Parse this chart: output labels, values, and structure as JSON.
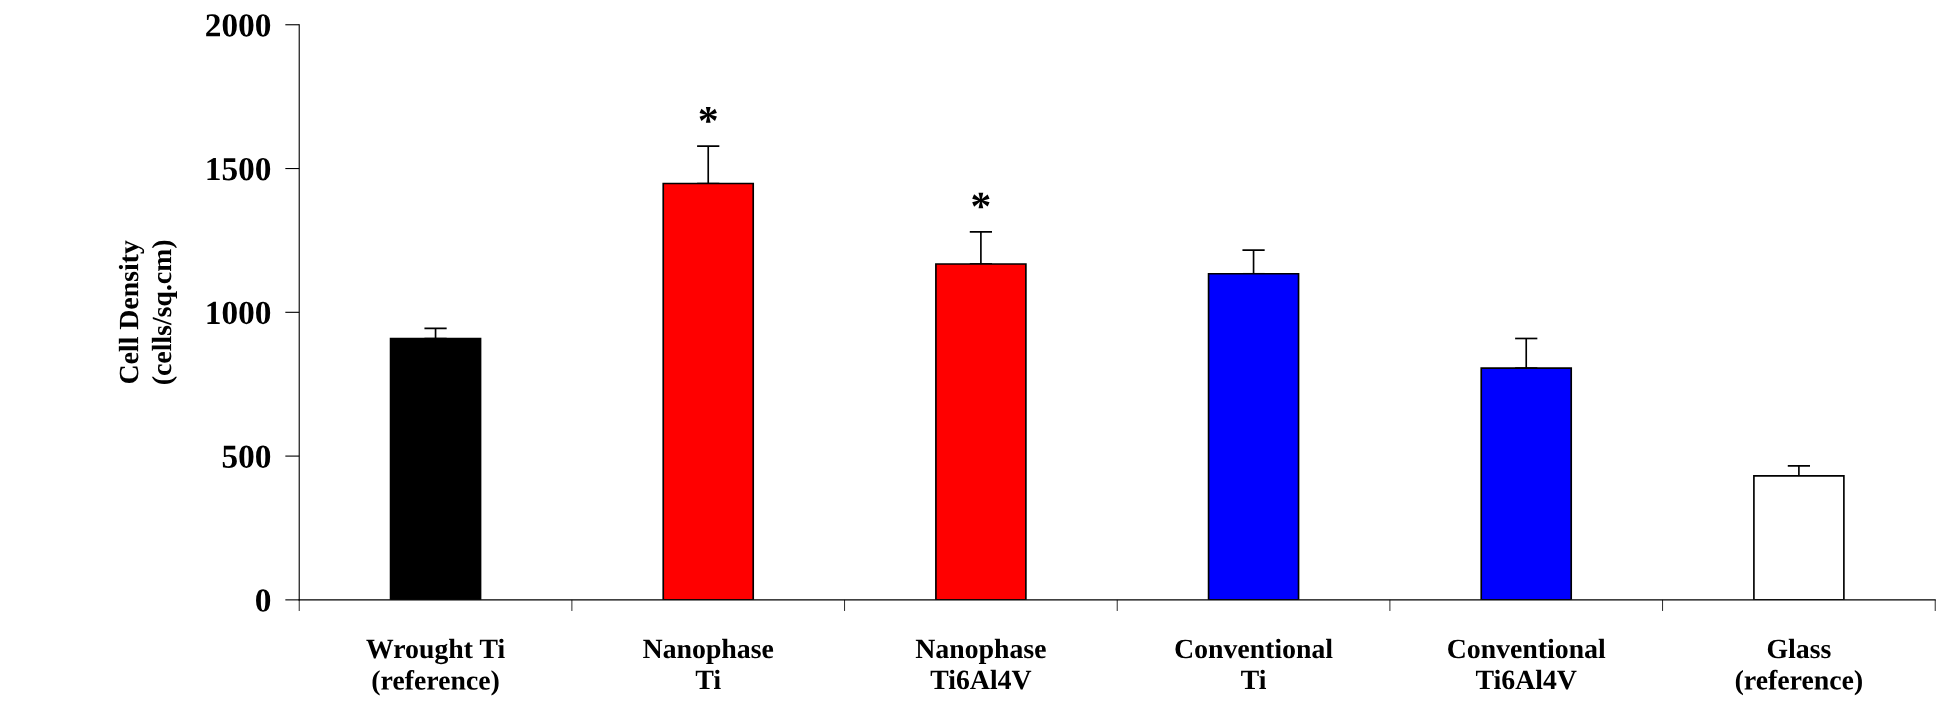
{
  "chart_data": {
    "type": "bar",
    "ylabel": "Cell Density\n(cells/sq.cm)",
    "categories": [
      "Wrought Ti\n(reference)",
      "Nanophase\nTi",
      "Nanophase\nTi6Al4V",
      "Conventional\nTi",
      "Conventional\nTi6Al4V",
      "Glass\n(reference)"
    ],
    "values": [
      909,
      1448,
      1168,
      1134,
      806,
      431
    ],
    "colors": [
      "#000000",
      "#ff0000",
      "#ff0000",
      "#0000ff",
      "#0000ff",
      "#ffffff"
    ],
    "errors": [
      [
        909,
        944
      ],
      [
        1448,
        1578
      ],
      [
        1168,
        1280
      ],
      [
        1134,
        1216
      ],
      [
        806,
        909
      ],
      [
        431,
        466
      ]
    ],
    "ylim": [
      0,
      2000
    ],
    "yticks": [
      0,
      500,
      1000,
      1500,
      2000
    ],
    "grid": false,
    "legend": false,
    "annotations": [
      {
        "text": "*",
        "x": "Nanophase\nTi",
        "y": 1578
      },
      {
        "text": "*",
        "x": "Nanophase\nTi6Al4V",
        "y": 1280
      }
    ]
  }
}
